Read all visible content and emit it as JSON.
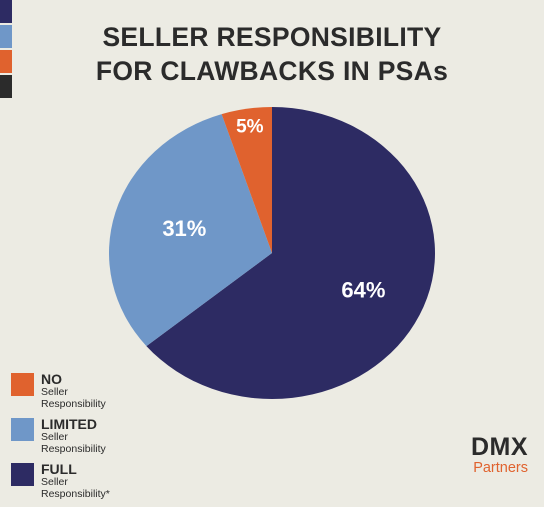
{
  "title_lines": [
    "SELLER RESPONSIBILITY",
    "FOR CLAWBACKS IN PSAs"
  ],
  "stripes": [
    "#2d2b63",
    "#6f97c8",
    "#e0622e",
    "#2b2b2b"
  ],
  "chart_data": {
    "type": "pie",
    "title": "SELLER RESPONSIBILITY FOR CLAWBACKS IN PSAs",
    "start": "12 o'clock",
    "direction": "clockwise",
    "slices": [
      {
        "key": "full",
        "value": 64,
        "label": "64%",
        "color": "#2d2b63"
      },
      {
        "key": "limited",
        "value": 31,
        "label": "31%",
        "color": "#6f97c8"
      },
      {
        "key": "no",
        "value": 5,
        "label": "5%",
        "color": "#e0622e"
      }
    ]
  },
  "legend": [
    {
      "main": "NO",
      "sub": "Seller Responsibility",
      "color": "#e0622e"
    },
    {
      "main": "LIMITED",
      "sub": "Seller Responsibility",
      "color": "#6f97c8"
    },
    {
      "main": "FULL",
      "sub": "Seller Responsibility*",
      "color": "#2d2b63"
    }
  ],
  "brand": {
    "name": "DMX",
    "sub": "Partners"
  }
}
